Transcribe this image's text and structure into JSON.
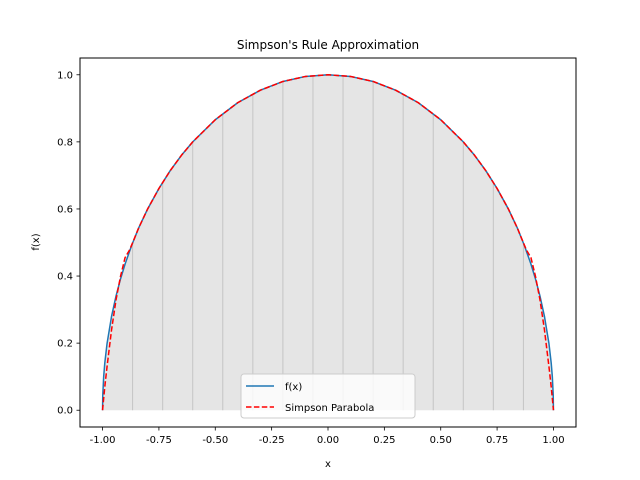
{
  "chart_data": {
    "type": "line",
    "title": "Simpson's Rule Approximation",
    "xlabel": "x",
    "ylabel": "f(x)",
    "xlim": [
      -1.1,
      1.1
    ],
    "ylim": [
      -0.05,
      1.05
    ],
    "x_ticks": [
      "-1.00",
      "-0.75",
      "-0.50",
      "-0.25",
      "0.00",
      "0.25",
      "0.50",
      "0.75",
      "1.00"
    ],
    "x_tick_values": [
      -1.0,
      -0.75,
      -0.5,
      -0.25,
      0.0,
      0.25,
      0.5,
      0.75,
      1.0
    ],
    "y_ticks": [
      "0.0",
      "0.2",
      "0.4",
      "0.6",
      "0.8",
      "1.0"
    ],
    "y_tick_values": [
      0.0,
      0.2,
      0.4,
      0.6,
      0.8,
      1.0
    ],
    "grid": false,
    "legend_position": "lower center",
    "subinterval_edges": [
      -1.0,
      -0.8667,
      -0.7333,
      -0.6,
      -0.4667,
      -0.3333,
      -0.2,
      -0.0667,
      0.0667,
      0.2,
      0.3333,
      0.4667,
      0.6,
      0.7333,
      0.8667,
      1.0
    ],
    "series": [
      {
        "name": "f(x)",
        "style": "solid",
        "color": "#1f77b4",
        "x": [
          -1.0,
          -0.999,
          -0.995,
          -0.99,
          -0.98,
          -0.96,
          -0.94,
          -0.92,
          -0.9,
          -0.87,
          -0.84,
          -0.8,
          -0.75,
          -0.7,
          -0.65,
          -0.6,
          -0.5,
          -0.4,
          -0.3,
          -0.2,
          -0.1,
          0.0,
          0.1,
          0.2,
          0.3,
          0.4,
          0.5,
          0.6,
          0.65,
          0.7,
          0.75,
          0.8,
          0.84,
          0.87,
          0.9,
          0.92,
          0.94,
          0.96,
          0.98,
          0.99,
          0.995,
          0.999,
          1.0
        ],
        "y": [
          0.0,
          0.045,
          0.1,
          0.141,
          0.199,
          0.28,
          0.341,
          0.392,
          0.436,
          0.493,
          0.543,
          0.6,
          0.661,
          0.714,
          0.76,
          0.8,
          0.866,
          0.917,
          0.954,
          0.98,
          0.995,
          1.0,
          0.995,
          0.98,
          0.954,
          0.917,
          0.866,
          0.8,
          0.76,
          0.714,
          0.661,
          0.6,
          0.543,
          0.493,
          0.436,
          0.392,
          0.341,
          0.28,
          0.199,
          0.141,
          0.1,
          0.045,
          0.0
        ]
      },
      {
        "name": "Simpson Parabola",
        "style": "dashed",
        "color": "#ff0000",
        "x": [
          -1.0,
          -0.99,
          -0.98,
          -0.96,
          -0.94,
          -0.92,
          -0.9,
          -0.88,
          -0.8667,
          -0.84,
          -0.8,
          -0.75,
          -0.7,
          -0.65,
          -0.6,
          -0.5,
          -0.4,
          -0.3,
          -0.2,
          -0.1,
          0.0,
          0.1,
          0.2,
          0.3,
          0.4,
          0.5,
          0.6,
          0.65,
          0.7,
          0.75,
          0.8,
          0.84,
          0.8667,
          0.88,
          0.9,
          0.92,
          0.94,
          0.96,
          0.98,
          0.99,
          1.0
        ],
        "y": [
          0.0,
          0.07,
          0.13,
          0.24,
          0.33,
          0.4,
          0.455,
          0.478,
          0.499,
          0.543,
          0.6,
          0.661,
          0.714,
          0.76,
          0.8,
          0.866,
          0.917,
          0.954,
          0.98,
          0.995,
          1.0,
          0.995,
          0.98,
          0.954,
          0.917,
          0.866,
          0.8,
          0.76,
          0.714,
          0.661,
          0.6,
          0.543,
          0.499,
          0.478,
          0.455,
          0.4,
          0.33,
          0.24,
          0.13,
          0.07,
          0.0
        ]
      }
    ]
  }
}
